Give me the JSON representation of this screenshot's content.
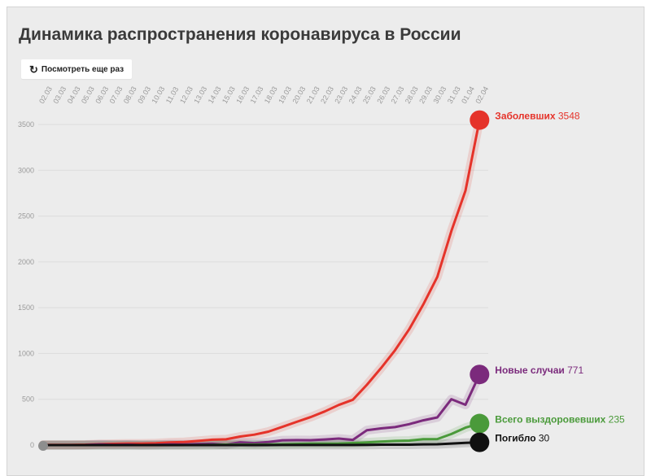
{
  "title": "Динамика распространения коронавируса в России",
  "replay_button": {
    "label": "Посмотреть еще раз",
    "icon": "replay-icon"
  },
  "chart_data": {
    "type": "line",
    "title": "Динамика распространения коронавируса в России",
    "categories": [
      "02.03",
      "03.03",
      "04.03",
      "05.03",
      "06.03",
      "07.03",
      "08.03",
      "09.03",
      "10.03",
      "11.03",
      "12.03",
      "13.03",
      "14.03",
      "15.03",
      "16.03",
      "17.03",
      "18.03",
      "19.03",
      "20.03",
      "21.03",
      "22.03",
      "23.03",
      "24.03",
      "25.03",
      "26.03",
      "27.03",
      "28.03",
      "29.03",
      "30.03",
      "31.03",
      "01.04",
      "02.04"
    ],
    "ylim": [
      0,
      3500
    ],
    "yticks": [
      0,
      500,
      1000,
      1500,
      2000,
      2500,
      3000,
      3500
    ],
    "grid": true,
    "series": [
      {
        "name": "Заболевших",
        "final_value": "3548",
        "color": "#e5332a",
        "values": [
          3,
          3,
          3,
          4,
          10,
          13,
          17,
          17,
          20,
          28,
          34,
          45,
          59,
          63,
          93,
          114,
          147,
          199,
          253,
          306,
          367,
          438,
          495,
          658,
          840,
          1036,
          1264,
          1534,
          1836,
          2337,
          2777,
          3548
        ]
      },
      {
        "name": "Новые случаи",
        "final_value": "771",
        "color": "#7b2a7c",
        "values": [
          0,
          0,
          0,
          1,
          6,
          3,
          4,
          0,
          3,
          8,
          6,
          11,
          14,
          4,
          30,
          21,
          33,
          52,
          54,
          53,
          61,
          71,
          57,
          163,
          182,
          196,
          228,
          270,
          302,
          501,
          440,
          771
        ]
      },
      {
        "name": "Всего выздоровевших",
        "final_value": "235",
        "color": "#4a9a3a",
        "values": [
          0,
          0,
          0,
          0,
          0,
          0,
          0,
          0,
          0,
          0,
          0,
          0,
          3,
          5,
          5,
          5,
          7,
          9,
          12,
          15,
          16,
          17,
          22,
          29,
          38,
          45,
          49,
          64,
          66,
          121,
          190,
          235
        ]
      },
      {
        "name": "Погибло",
        "final_value": "30",
        "color": "#111111",
        "values": [
          0,
          0,
          0,
          0,
          0,
          0,
          0,
          0,
          0,
          0,
          0,
          0,
          0,
          0,
          0,
          0,
          0,
          1,
          1,
          1,
          1,
          1,
          1,
          3,
          4,
          4,
          4,
          8,
          9,
          17,
          24,
          30
        ]
      }
    ]
  }
}
